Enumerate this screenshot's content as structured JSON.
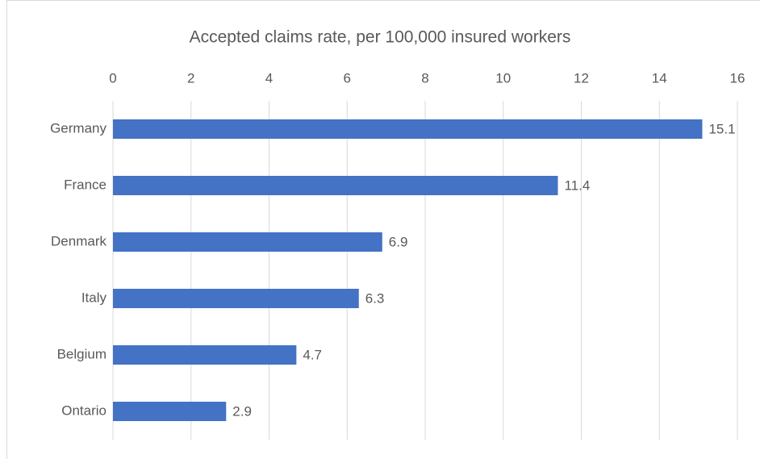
{
  "chart_data": {
    "type": "bar",
    "orientation": "horizontal",
    "title": "Accepted claims rate, per 100,000 insured workers",
    "categories": [
      "Germany",
      "France",
      "Denmark",
      "Italy",
      "Belgium",
      "Ontario"
    ],
    "values": [
      15.1,
      11.4,
      6.9,
      6.3,
      4.7,
      2.9
    ],
    "color": "#4472c4",
    "xlim": [
      0,
      16
    ],
    "xticks": [
      0,
      2,
      4,
      6,
      8,
      10,
      12,
      14,
      16
    ],
    "grid": true,
    "data_labels": true
  }
}
